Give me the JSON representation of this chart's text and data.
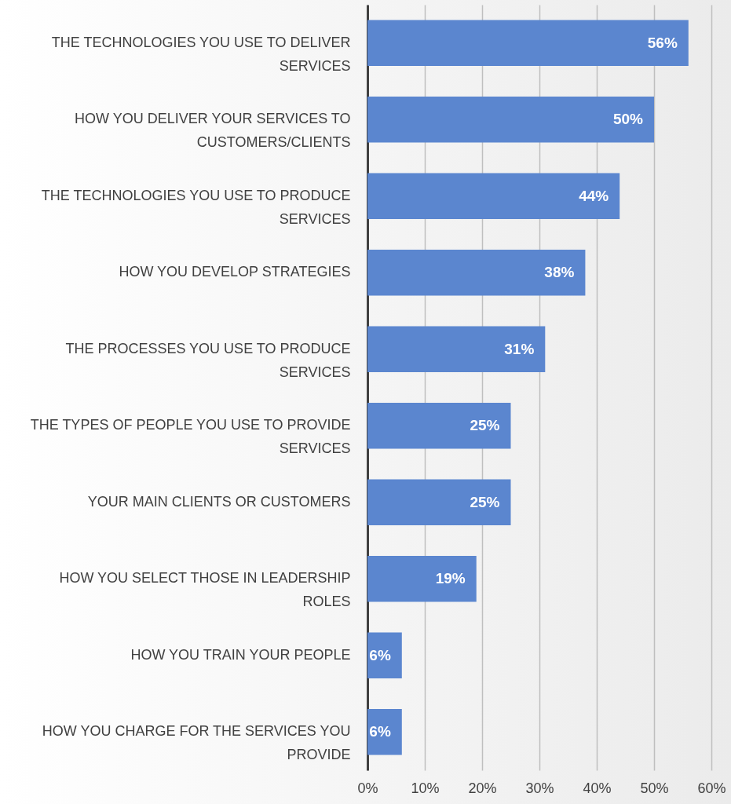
{
  "chart_data": {
    "type": "bar",
    "orientation": "horizontal",
    "categories": [
      "THE TECHNOLOGIES YOU USE TO DELIVER SERVICES",
      "HOW YOU DELIVER YOUR SERVICES TO CUSTOMERS/CLIENTS",
      "THE TECHNOLOGIES YOU USE TO PRODUCE SERVICES",
      "HOW YOU DEVELOP STRATEGIES",
      "THE PROCESSES YOU USE TO PRODUCE SERVICES",
      "THE TYPES OF PEOPLE YOU USE TO PROVIDE SERVICES",
      "YOUR MAIN CLIENTS OR CUSTOMERS",
      "HOW YOU SELECT THOSE IN LEADERSHIP ROLES",
      "HOW YOU TRAIN YOUR PEOPLE",
      "HOW YOU CHARGE FOR THE SERVICES YOU PROVIDE"
    ],
    "values": [
      56,
      50,
      44,
      38,
      31,
      25,
      25,
      19,
      6,
      6
    ],
    "value_labels": [
      "56%",
      "50%",
      "44%",
      "38%",
      "31%",
      "25%",
      "25%",
      "19%",
      "6%",
      "6%"
    ],
    "color": "#5b86cf",
    "xlim": [
      0,
      60
    ],
    "xticks": [
      {
        "value": 0,
        "label": "0%"
      },
      {
        "value": 10,
        "label": "10%"
      },
      {
        "value": 20,
        "label": "20%"
      },
      {
        "value": 30,
        "label": "30%"
      },
      {
        "value": 40,
        "label": "40%"
      },
      {
        "value": 50,
        "label": "50%"
      },
      {
        "value": 60,
        "label": "60%"
      }
    ],
    "grid": "x"
  }
}
